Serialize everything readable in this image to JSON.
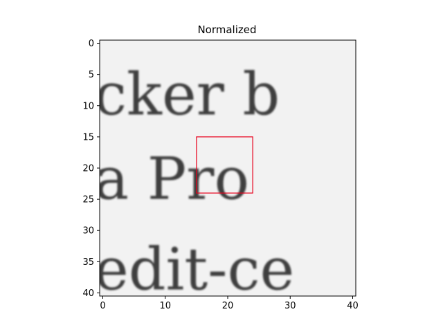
{
  "figure": {
    "title": "Normalized"
  },
  "image": {
    "text_lines": [
      {
        "text": "cker b",
        "y_data": 9
      },
      {
        "text": "a Pro",
        "y_data": 22.5
      },
      {
        "text": "edit-ce",
        "y_data": 37
      }
    ],
    "ink_color": "#1e1e1e",
    "background": "#f2f2f2"
  },
  "axes": {
    "xlim": [
      -0.5,
      40.5
    ],
    "ylim_top_to_bottom": [
      -0.5,
      40.5
    ],
    "x_ticks": [
      0,
      10,
      20,
      30,
      40
    ],
    "y_ticks": [
      0,
      5,
      10,
      15,
      20,
      25,
      30,
      35,
      40
    ],
    "x_tick_labels": [
      "0",
      "10",
      "20",
      "30",
      "40"
    ],
    "y_tick_labels": [
      "0",
      "5",
      "10",
      "15",
      "20",
      "25",
      "30",
      "35",
      "40"
    ]
  },
  "highlight_box": {
    "x0": 15,
    "y0": 15,
    "x1": 24,
    "y1": 24,
    "color": "#e8001c"
  }
}
